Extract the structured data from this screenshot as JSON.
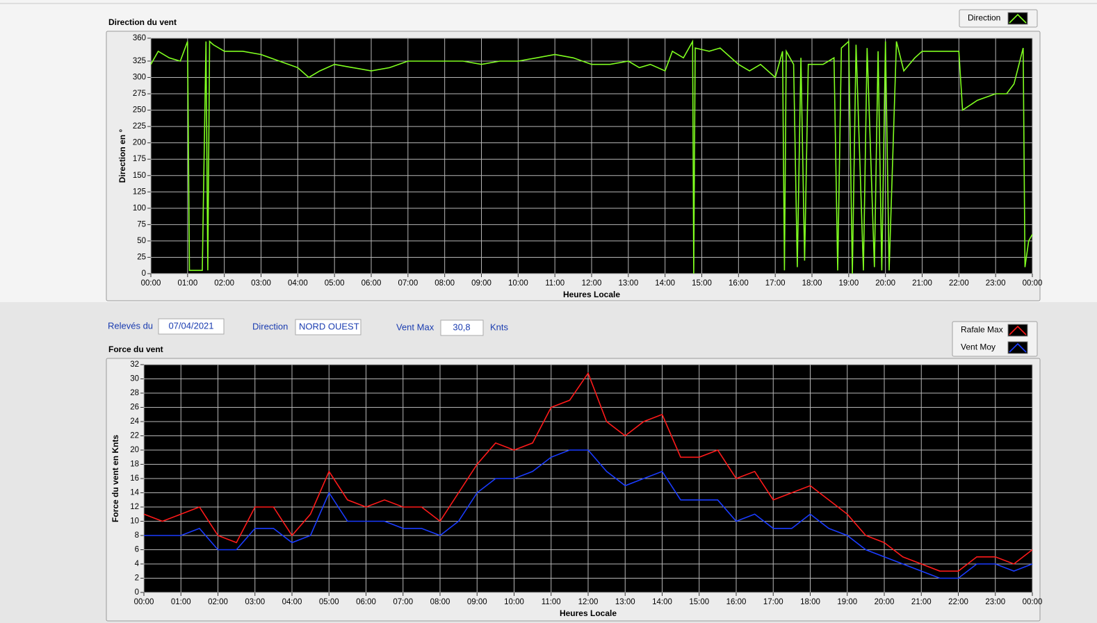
{
  "chart_data": [
    {
      "type": "line",
      "title": "Direction du vent",
      "xlabel": "Heures Locale",
      "ylabel": "Direction en °",
      "x": [
        0,
        0.2,
        0.5,
        0.8,
        1.0,
        1.05,
        1.4,
        1.5,
        1.55,
        1.6,
        1.7,
        2.0,
        2.5,
        3.0,
        3.5,
        4.0,
        4.3,
        4.6,
        5.0,
        5.5,
        6.0,
        6.5,
        7.0,
        7.5,
        8.0,
        8.5,
        9.0,
        9.5,
        10.0,
        10.5,
        11.0,
        11.5,
        12.0,
        12.5,
        13.0,
        13.3,
        13.6,
        14.0,
        14.2,
        14.5,
        14.75,
        14.78,
        14.82,
        15.2,
        15.5,
        16.0,
        16.3,
        16.6,
        17.0,
        17.2,
        17.25,
        17.3,
        17.5,
        17.6,
        17.7,
        17.8,
        17.9,
        18.3,
        18.6,
        18.7,
        18.8,
        19.0,
        19.1,
        19.2,
        19.4,
        19.5,
        19.7,
        19.8,
        19.9,
        20.0,
        20.1,
        20.3,
        20.5,
        20.8,
        21.0,
        22.0,
        22.1,
        22.5,
        23.0,
        23.3,
        23.5,
        23.75,
        23.8,
        23.9,
        24.0
      ],
      "series": [
        {
          "name": "Direction",
          "color": "#80ff20",
          "values": [
            320,
            340,
            330,
            325,
            355,
            5,
            5,
            355,
            5,
            355,
            350,
            340,
            340,
            335,
            325,
            315,
            300,
            310,
            320,
            315,
            310,
            315,
            325,
            325,
            325,
            325,
            320,
            325,
            325,
            330,
            335,
            330,
            320,
            320,
            325,
            315,
            320,
            310,
            340,
            330,
            355,
            0,
            345,
            340,
            345,
            320,
            310,
            320,
            300,
            340,
            5,
            340,
            320,
            10,
            330,
            20,
            320,
            320,
            330,
            5,
            345,
            355,
            0,
            350,
            5,
            345,
            10,
            340,
            5,
            355,
            5,
            355,
            310,
            330,
            340,
            340,
            250,
            265,
            275,
            275,
            290,
            345,
            10,
            50,
            60
          ]
        }
      ],
      "xlim": [
        0,
        24
      ],
      "xticks": [
        {
          "value": 0,
          "label": "00:00"
        },
        {
          "value": 1,
          "label": "01:00"
        },
        {
          "value": 2,
          "label": "02:00"
        },
        {
          "value": 3,
          "label": "03:00"
        },
        {
          "value": 4,
          "label": "04:00"
        },
        {
          "value": 5,
          "label": "05:00"
        },
        {
          "value": 6,
          "label": "06:00"
        },
        {
          "value": 7,
          "label": "07:00"
        },
        {
          "value": 8,
          "label": "08:00"
        },
        {
          "value": 9,
          "label": "09:00"
        },
        {
          "value": 10,
          "label": "10:00"
        },
        {
          "value": 11,
          "label": "11:00"
        },
        {
          "value": 12,
          "label": "12:00"
        },
        {
          "value": 13,
          "label": "13:00"
        },
        {
          "value": 14,
          "label": "14:00"
        },
        {
          "value": 15,
          "label": "15:00"
        },
        {
          "value": 16,
          "label": "16:00"
        },
        {
          "value": 17,
          "label": "17:00"
        },
        {
          "value": 18,
          "label": "18:00"
        },
        {
          "value": 19,
          "label": "19:00"
        },
        {
          "value": 20,
          "label": "20:00"
        },
        {
          "value": 21,
          "label": "21:00"
        },
        {
          "value": 22,
          "label": "22:00"
        },
        {
          "value": 23,
          "label": "23:00"
        },
        {
          "value": 24,
          "label": "00:00"
        }
      ],
      "ylim": [
        0,
        360
      ],
      "yticks": [
        0,
        25,
        50,
        75,
        100,
        125,
        150,
        175,
        200,
        225,
        250,
        275,
        300,
        325,
        360
      ],
      "grid": true
    },
    {
      "type": "line",
      "title": "Force du vent",
      "xlabel": "Heures Locale",
      "ylabel": "Force du vent en Knts",
      "x": [
        0,
        0.5,
        1,
        1.5,
        2,
        2.5,
        3,
        3.5,
        4,
        4.5,
        5,
        5.5,
        6,
        6.5,
        7,
        7.5,
        8,
        8.5,
        9,
        9.5,
        10,
        10.5,
        11,
        11.5,
        12,
        12.5,
        13,
        13.5,
        14,
        14.5,
        15,
        15.5,
        16,
        16.5,
        17,
        17.5,
        18,
        18.5,
        19,
        19.5,
        20,
        20.5,
        21,
        21.5,
        22,
        22.5,
        23,
        23.5,
        24
      ],
      "series": [
        {
          "name": "Rafale Max",
          "color": "#ff1a1a",
          "values": [
            11,
            10,
            11,
            12,
            8,
            7,
            12,
            12,
            8,
            11,
            17,
            13,
            12,
            13,
            12,
            12,
            10,
            14,
            18,
            21,
            20,
            21,
            26,
            27,
            30.8,
            24,
            22,
            24,
            25,
            19,
            19,
            20,
            16,
            17,
            13,
            14,
            15,
            13,
            11,
            8,
            7,
            5,
            4,
            3,
            3,
            5,
            5,
            4,
            6
          ]
        },
        {
          "name": "Vent Moy",
          "color": "#1a3cff",
          "values": [
            8,
            8,
            8,
            9,
            6,
            6,
            9,
            9,
            7,
            8,
            14,
            10,
            10,
            10,
            9,
            9,
            8,
            10,
            14,
            16,
            16,
            17,
            19,
            20,
            20,
            17,
            15,
            16,
            17,
            13,
            13,
            13,
            10,
            11,
            9,
            9,
            11,
            9,
            8,
            6,
            5,
            4,
            3,
            2,
            2,
            4,
            4,
            3,
            4
          ]
        }
      ],
      "xlim": [
        0,
        24
      ],
      "xticks": [
        {
          "value": 0,
          "label": "00:00"
        },
        {
          "value": 1,
          "label": "01:00"
        },
        {
          "value": 2,
          "label": "02:00"
        },
        {
          "value": 3,
          "label": "03:00"
        },
        {
          "value": 4,
          "label": "04:00"
        },
        {
          "value": 5,
          "label": "05:00"
        },
        {
          "value": 6,
          "label": "06:00"
        },
        {
          "value": 7,
          "label": "07:00"
        },
        {
          "value": 8,
          "label": "08:00"
        },
        {
          "value": 9,
          "label": "09:00"
        },
        {
          "value": 10,
          "label": "10:00"
        },
        {
          "value": 11,
          "label": "11:00"
        },
        {
          "value": 12,
          "label": "12:00"
        },
        {
          "value": 13,
          "label": "13:00"
        },
        {
          "value": 14,
          "label": "14:00"
        },
        {
          "value": 15,
          "label": "15:00"
        },
        {
          "value": 16,
          "label": "16:00"
        },
        {
          "value": 17,
          "label": "17:00"
        },
        {
          "value": 18,
          "label": "18:00"
        },
        {
          "value": 19,
          "label": "19:00"
        },
        {
          "value": 20,
          "label": "20:00"
        },
        {
          "value": 21,
          "label": "21:00"
        },
        {
          "value": 22,
          "label": "22:00"
        },
        {
          "value": 23,
          "label": "23:00"
        },
        {
          "value": 24,
          "label": "00:00"
        }
      ],
      "ylim": [
        0,
        32
      ],
      "yticks": [
        0,
        2,
        4,
        6,
        8,
        10,
        12,
        14,
        16,
        18,
        20,
        22,
        24,
        26,
        28,
        30,
        32
      ],
      "grid": true
    }
  ],
  "fields": [
    {
      "label": "Relevés du",
      "value": "07/04/2021"
    },
    {
      "label": "Direction",
      "value": "NORD OUEST"
    },
    {
      "label": "Vent Max",
      "value": "30,8",
      "unit": "Knts"
    }
  ]
}
